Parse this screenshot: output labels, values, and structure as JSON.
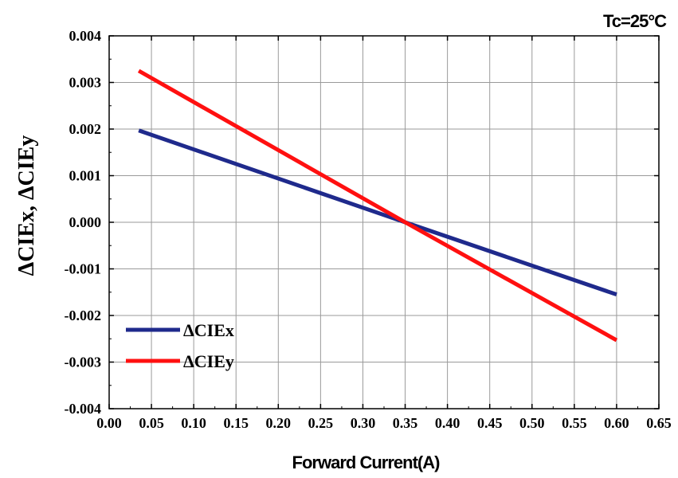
{
  "chart_data": {
    "type": "line",
    "annotation": "Tc=25°C",
    "xlabel": "Forward Current(A)",
    "ylabel": "ΔCIEx, ΔCIEy",
    "xlim": [
      0.0,
      0.65
    ],
    "ylim": [
      -0.004,
      0.004
    ],
    "xticks": [
      "0.00",
      "0.05",
      "0.10",
      "0.15",
      "0.20",
      "0.25",
      "0.30",
      "0.35",
      "0.40",
      "0.45",
      "0.50",
      "0.55",
      "0.60",
      "0.65"
    ],
    "yticks": [
      "-0.004",
      "-0.003",
      "-0.002",
      "-0.001",
      "0.000",
      "0.001",
      "0.002",
      "0.003",
      "0.004"
    ],
    "grid": true,
    "legend_position": "bottom-left",
    "series": [
      {
        "name": "ΔCIEx",
        "color": "#1f2a8c",
        "x": [
          0.035,
          0.35,
          0.6
        ],
        "y": [
          0.00197,
          0.0,
          -0.00155
        ]
      },
      {
        "name": "ΔCIEy",
        "color": "#ff1010",
        "x": [
          0.035,
          0.35,
          0.6
        ],
        "y": [
          0.00325,
          0.0,
          -0.00253
        ]
      }
    ]
  }
}
